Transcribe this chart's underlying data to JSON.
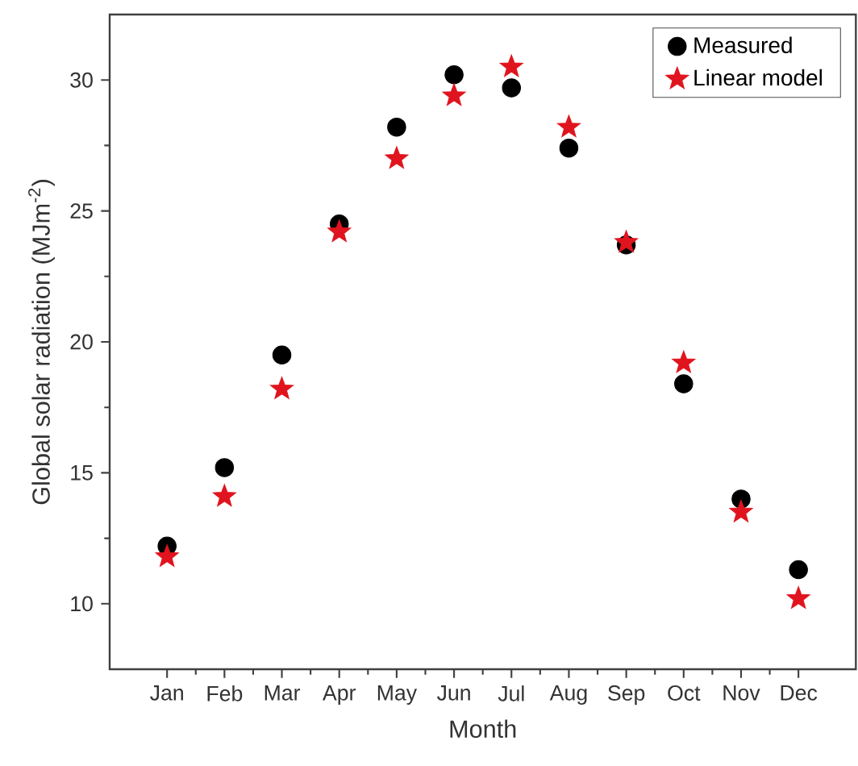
{
  "chart_data": {
    "type": "scatter",
    "xlabel": "Month",
    "ylabel": "Global solar radiation (MJm$^{-2}$)",
    "categories": [
      "Jan",
      "Feb",
      "Mar",
      "Apr",
      "May",
      "Jun",
      "Jul",
      "Aug",
      "Sep",
      "Oct",
      "Nov",
      "Dec"
    ],
    "series": [
      {
        "name": "Measured",
        "color": "#000000",
        "marker": "circle",
        "values": [
          12.2,
          15.2,
          19.5,
          24.5,
          28.2,
          30.2,
          29.7,
          27.4,
          23.7,
          18.4,
          14.0,
          11.3
        ]
      },
      {
        "name": "Linear model",
        "color": "#e0141e",
        "marker": "star",
        "values": [
          11.8,
          14.1,
          18.2,
          24.2,
          27.0,
          29.4,
          30.5,
          28.2,
          23.8,
          19.2,
          13.5,
          10.2
        ]
      }
    ],
    "ylim": [
      7.5,
      32.5
    ],
    "yticks": [
      10,
      15,
      20,
      25,
      30
    ],
    "grid": false,
    "legend": "top right"
  }
}
